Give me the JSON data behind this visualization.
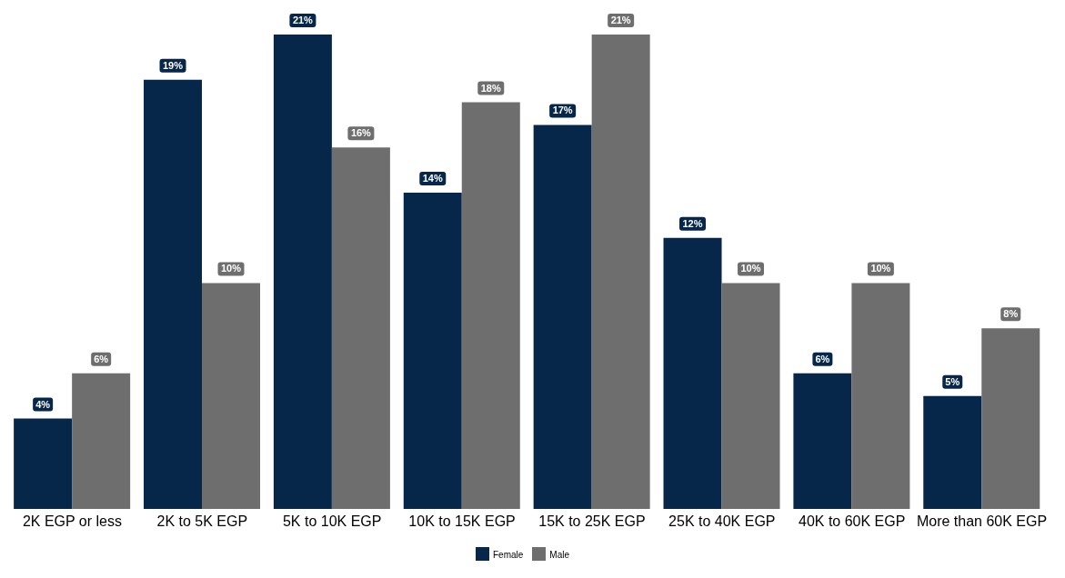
{
  "chart_data": {
    "type": "bar",
    "categories": [
      "2K EGP or less",
      "2K to 5K EGP",
      "5K to 10K EGP",
      "10K to 15K EGP",
      "15K to 25K EGP",
      "25K to 40K EGP",
      "40K to 60K EGP",
      "More than 60K EGP"
    ],
    "series": [
      {
        "name": "Female",
        "color": "#06264a",
        "values": [
          4,
          19,
          21,
          14,
          17,
          12,
          6,
          5
        ],
        "value_labels": [
          "4%",
          "19%",
          "21%",
          "14%",
          "17%",
          "12%",
          "6%",
          "5%"
        ]
      },
      {
        "name": "Male",
        "color": "#6e6e6e",
        "values": [
          6,
          10,
          16,
          18,
          21,
          10,
          10,
          8
        ],
        "value_labels": [
          "6%",
          "10%",
          "16%",
          "18%",
          "21%",
          "10%",
          "10%",
          "8%"
        ]
      }
    ],
    "legend": "bottom",
    "grid": false
  }
}
